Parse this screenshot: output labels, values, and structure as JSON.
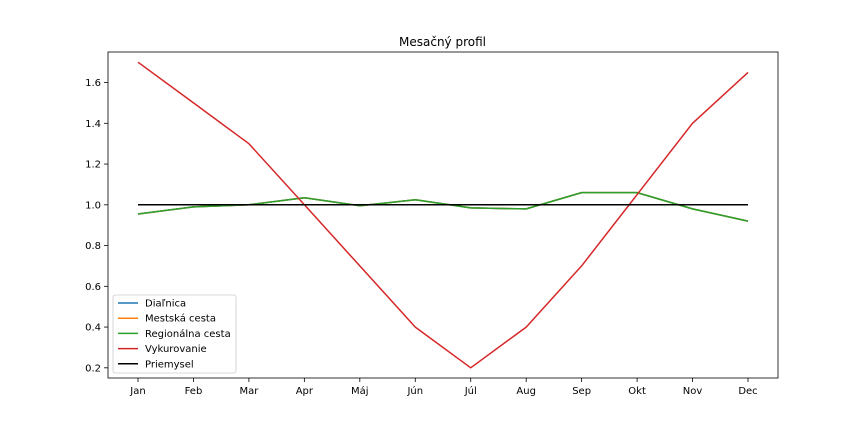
{
  "chart_data": {
    "type": "line",
    "title": "Mesačný profil",
    "xlabel": "",
    "ylabel": "",
    "categories": [
      "Jan",
      "Feb",
      "Mar",
      "Apr",
      "Máj",
      "Jún",
      "Júl",
      "Aug",
      "Sep",
      "Okt",
      "Nov",
      "Dec"
    ],
    "ylim": [
      0.15,
      1.75
    ],
    "yticks": [
      0.2,
      0.4,
      0.6,
      0.8,
      1.0,
      1.2,
      1.4,
      1.6
    ],
    "ytick_labels": [
      "0.2",
      "0.4",
      "0.6",
      "0.8",
      "1.0",
      "1.2",
      "1.4",
      "1.6"
    ],
    "grid": false,
    "legend_position": "lower-left",
    "series": [
      {
        "name": "Diaľnica",
        "color": "#1f77b4",
        "values": [
          0.955,
          0.99,
          1.0,
          1.035,
          0.995,
          1.025,
          0.985,
          0.98,
          1.06,
          1.06,
          0.98,
          0.92
        ]
      },
      {
        "name": "Mestská cesta",
        "color": "#ff7f0e",
        "values": [
          0.955,
          0.99,
          1.0,
          1.035,
          0.995,
          1.025,
          0.985,
          0.98,
          1.06,
          1.06,
          0.98,
          0.92
        ]
      },
      {
        "name": "Regionálna cesta",
        "color": "#2ca02c",
        "values": [
          0.955,
          0.99,
          1.0,
          1.035,
          0.995,
          1.025,
          0.985,
          0.98,
          1.06,
          1.06,
          0.98,
          0.92
        ]
      },
      {
        "name": "Vykurovanie",
        "color": "#d62728",
        "values": [
          1.7,
          1.5,
          1.3,
          1.0,
          0.7,
          0.4,
          0.2,
          0.4,
          0.7,
          1.05,
          1.4,
          1.65
        ]
      },
      {
        "name": "Priemysel",
        "color": "#000000",
        "values": [
          1.0,
          1.0,
          1.0,
          1.0,
          1.0,
          1.0,
          1.0,
          1.0,
          1.0,
          1.0,
          1.0,
          1.0
        ]
      }
    ]
  }
}
